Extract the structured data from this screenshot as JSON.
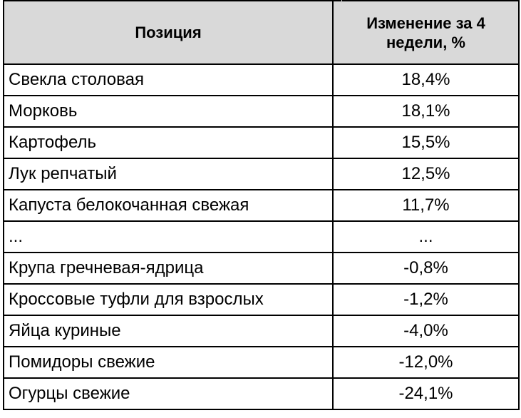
{
  "table": {
    "headers": {
      "position": "Позиция",
      "change": "Изменение за 4 недели, %"
    },
    "rows": [
      {
        "position": "Свекла столовая",
        "change": "18,4%"
      },
      {
        "position": "Морковь",
        "change": "18,1%"
      },
      {
        "position": "Картофель",
        "change": "15,5%"
      },
      {
        "position": "Лук репчатый",
        "change": "12,5%"
      },
      {
        "position": "Капуста белокочанная свежая",
        "change": "11,7%"
      },
      {
        "position": "...",
        "change": "..."
      },
      {
        "position": "Крупа гречневая-ядрица",
        "change": "-0,8%"
      },
      {
        "position": "Кроссовые туфли для взрослых",
        "change": "-1,2%"
      },
      {
        "position": "Яйца куриные",
        "change": "-4,0%"
      },
      {
        "position": "Помидоры свежие",
        "change": "-12,0%"
      },
      {
        "position": "Огурцы свежие",
        "change": "-24,1%"
      }
    ]
  },
  "colors": {
    "header_background": "#d9d9d9",
    "grid": "#000000",
    "text": "#000000"
  }
}
